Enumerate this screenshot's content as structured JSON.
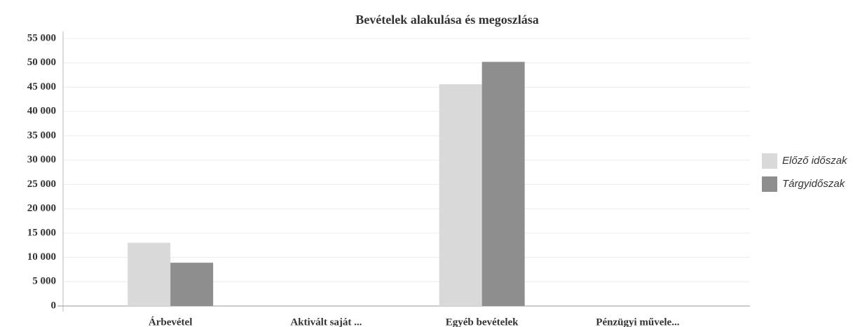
{
  "chart_data": {
    "type": "bar",
    "title": "Bevételek alakulása és megoszlása",
    "categories": [
      "Árbevétel",
      "Aktivált saját ...",
      "Egyéb bevételek",
      "Pénzügyi művele..."
    ],
    "series": [
      {
        "name": "Előző időszak",
        "color": "#d9d9d9",
        "values": [
          13000,
          0,
          45600,
          0
        ]
      },
      {
        "name": "Tárgyidőszak",
        "color": "#8e8e8e",
        "values": [
          8900,
          0,
          50200,
          0
        ]
      }
    ],
    "ylim": [
      0,
      55000
    ],
    "yticks": [
      0,
      {
        "value": 5000,
        "label": "5 000"
      },
      {
        "value": 10000,
        "label": "10 000"
      },
      {
        "value": 15000,
        "label": "15 000"
      },
      {
        "value": 20000,
        "label": "20 000"
      },
      {
        "value": 25000,
        "label": "25 000"
      },
      {
        "value": 30000,
        "label": "30 000"
      },
      {
        "value": 35000,
        "label": "35 000"
      },
      {
        "value": 40000,
        "label": "40 000"
      },
      {
        "value": 45000,
        "label": "45 000"
      },
      {
        "value": 50000,
        "label": "50 000"
      },
      {
        "value": 55000,
        "label": "55 000"
      }
    ],
    "grid": true,
    "legend": "right"
  }
}
